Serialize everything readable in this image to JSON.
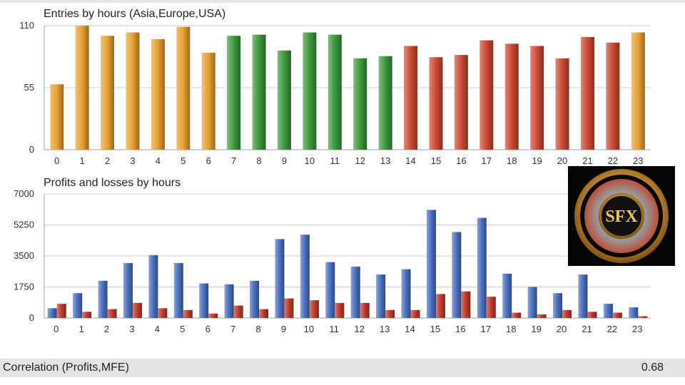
{
  "chart_data": [
    {
      "type": "bar",
      "title": "Entries by hours (Asia,Europe,USA)",
      "categories": [
        "0",
        "1",
        "2",
        "3",
        "4",
        "5",
        "6",
        "7",
        "8",
        "9",
        "10",
        "11",
        "12",
        "13",
        "14",
        "15",
        "16",
        "17",
        "18",
        "19",
        "20",
        "21",
        "22",
        "23"
      ],
      "values": [
        58,
        110,
        101,
        104,
        98,
        109,
        86,
        101,
        102,
        88,
        104,
        102,
        81,
        83,
        92,
        82,
        84,
        97,
        94,
        92,
        81,
        100,
        95,
        104
      ],
      "sessions": [
        "Asia",
        "Asia",
        "Asia",
        "Asia",
        "Asia",
        "Asia",
        "Asia",
        "Europe",
        "Europe",
        "Europe",
        "Europe",
        "Europe",
        "Europe",
        "Europe",
        "USA",
        "USA",
        "USA",
        "USA",
        "USA",
        "USA",
        "USA",
        "USA",
        "USA",
        "Asia"
      ],
      "session_colors": {
        "Asia": "#e8a030",
        "Europe": "#3c9a3c",
        "USA": "#cc4a34"
      },
      "yticks": [
        0,
        55,
        110
      ],
      "ylim": [
        0,
        110
      ],
      "grid": true
    },
    {
      "type": "bar",
      "title": "Profits and losses by hours",
      "categories": [
        "0",
        "1",
        "2",
        "3",
        "4",
        "5",
        "6",
        "7",
        "8",
        "9",
        "10",
        "11",
        "12",
        "13",
        "14",
        "15",
        "16",
        "17",
        "18",
        "19",
        "20",
        "21",
        "22",
        "23"
      ],
      "series": [
        {
          "values": [
            550,
            1400,
            2100,
            3100,
            3550,
            3100,
            1950,
            1900,
            2100,
            4450,
            4700,
            3150,
            2900,
            2450,
            2750,
            6100,
            4850,
            5650,
            2500,
            1750,
            1400,
            2450,
            800,
            600
          ],
          "color": "#4a6fc0"
        },
        {
          "values": [
            800,
            350,
            500,
            850,
            550,
            450,
            250,
            700,
            500,
            1100,
            1000,
            850,
            850,
            450,
            450,
            1350,
            1500,
            1200,
            300,
            200,
            450,
            350,
            300,
            100
          ],
          "color": "#c03a2a"
        }
      ],
      "yticks": [
        0,
        1750,
        3500,
        5250,
        7000
      ],
      "ylim": [
        0,
        7000
      ],
      "grid": true
    }
  ],
  "footer": {
    "label": "Correlation (Profits,MFE)",
    "value": "0.68"
  },
  "logo": {
    "text": "SFX"
  }
}
